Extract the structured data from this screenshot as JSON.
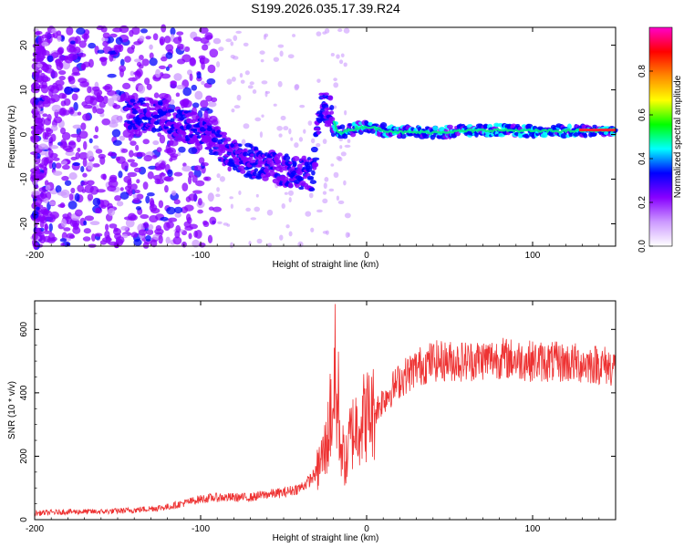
{
  "title": "S199.2026.035.17.39.R24",
  "chart_data": [
    {
      "type": "heatmap",
      "name": "spectrogram",
      "xlabel": "Height of straight line (km)",
      "ylabel": "Frequency (Hz)",
      "xlim": [
        -200,
        150
      ],
      "ylim": [
        -25,
        24
      ],
      "xticks": [
        -200,
        -100,
        0,
        100
      ],
      "xtick_labels": [
        "-200",
        "-100",
        "0",
        "100"
      ],
      "yticks": [
        -20,
        -10,
        0,
        10,
        20
      ],
      "ytick_labels": [
        "-20",
        "-10",
        "0",
        "10",
        "20"
      ],
      "ridge": {
        "description": "dominant frequency trace",
        "x": [
          -140,
          -130,
          -120,
          -110,
          -100,
          -90,
          -80,
          -70,
          -60,
          -50,
          -40,
          -32,
          -28,
          -22,
          -18,
          -15,
          -10,
          -5,
          0,
          10,
          20,
          40,
          60,
          80,
          100,
          120,
          150
        ],
        "y": [
          5,
          4.5,
          4,
          2,
          1,
          -2,
          -5,
          -6,
          -7,
          -8,
          -8.5,
          -9,
          7,
          5,
          1,
          0.5,
          1,
          1.5,
          1.8,
          1,
          0.5,
          0.5,
          0.8,
          1,
          0.8,
          0.8,
          1
        ]
      },
      "colorbar": {
        "label": "Normalized spectral amplitude",
        "range": [
          0,
          1
        ],
        "ticks": [
          0.0,
          0.2,
          0.4,
          0.6,
          0.8
        ],
        "tick_labels": [
          "0.0",
          "0.2",
          "0.4",
          "0.6",
          "0.8"
        ],
        "colors": [
          "#ffffff",
          "#cc99ff",
          "#8800ff",
          "#0000ff",
          "#00ffff",
          "#00ff00",
          "#ffff00",
          "#ff8800",
          "#ff0000",
          "#ff00cc"
        ]
      }
    },
    {
      "type": "line",
      "name": "snr",
      "xlabel": "Height of straight line (km)",
      "ylabel": "SNR (10 * v/v)",
      "xlim": [
        -200,
        150
      ],
      "ylim": [
        0,
        690
      ],
      "xticks": [
        -200,
        -100,
        0,
        100
      ],
      "xtick_labels": [
        "-200",
        "-100",
        "0",
        "100"
      ],
      "yticks": [
        0,
        200,
        400,
        600
      ],
      "ytick_labels": [
        "0",
        "200",
        "400",
        "600"
      ],
      "color": "#ee3333",
      "series": [
        {
          "name": "SNR",
          "x": [
            -200,
            -180,
            -160,
            -140,
            -120,
            -100,
            -90,
            -80,
            -70,
            -60,
            -50,
            -40,
            -35,
            -30,
            -25,
            -22,
            -20,
            -18,
            -16,
            -14,
            -12,
            -10,
            -5,
            0,
            5,
            10,
            20,
            30,
            40,
            60,
            80,
            100,
            120,
            140,
            150
          ],
          "y": [
            20,
            25,
            25,
            30,
            40,
            65,
            70,
            70,
            70,
            80,
            85,
            100,
            120,
            150,
            220,
            300,
            380,
            350,
            260,
            200,
            180,
            260,
            310,
            330,
            340,
            380,
            440,
            480,
            500,
            500,
            510,
            500,
            495,
            490,
            480
          ],
          "spikes": [
            {
              "x": -19,
              "y": 680
            },
            {
              "x": -17,
              "y": 530
            },
            {
              "x": -22,
              "y": 460
            }
          ]
        }
      ]
    }
  ]
}
